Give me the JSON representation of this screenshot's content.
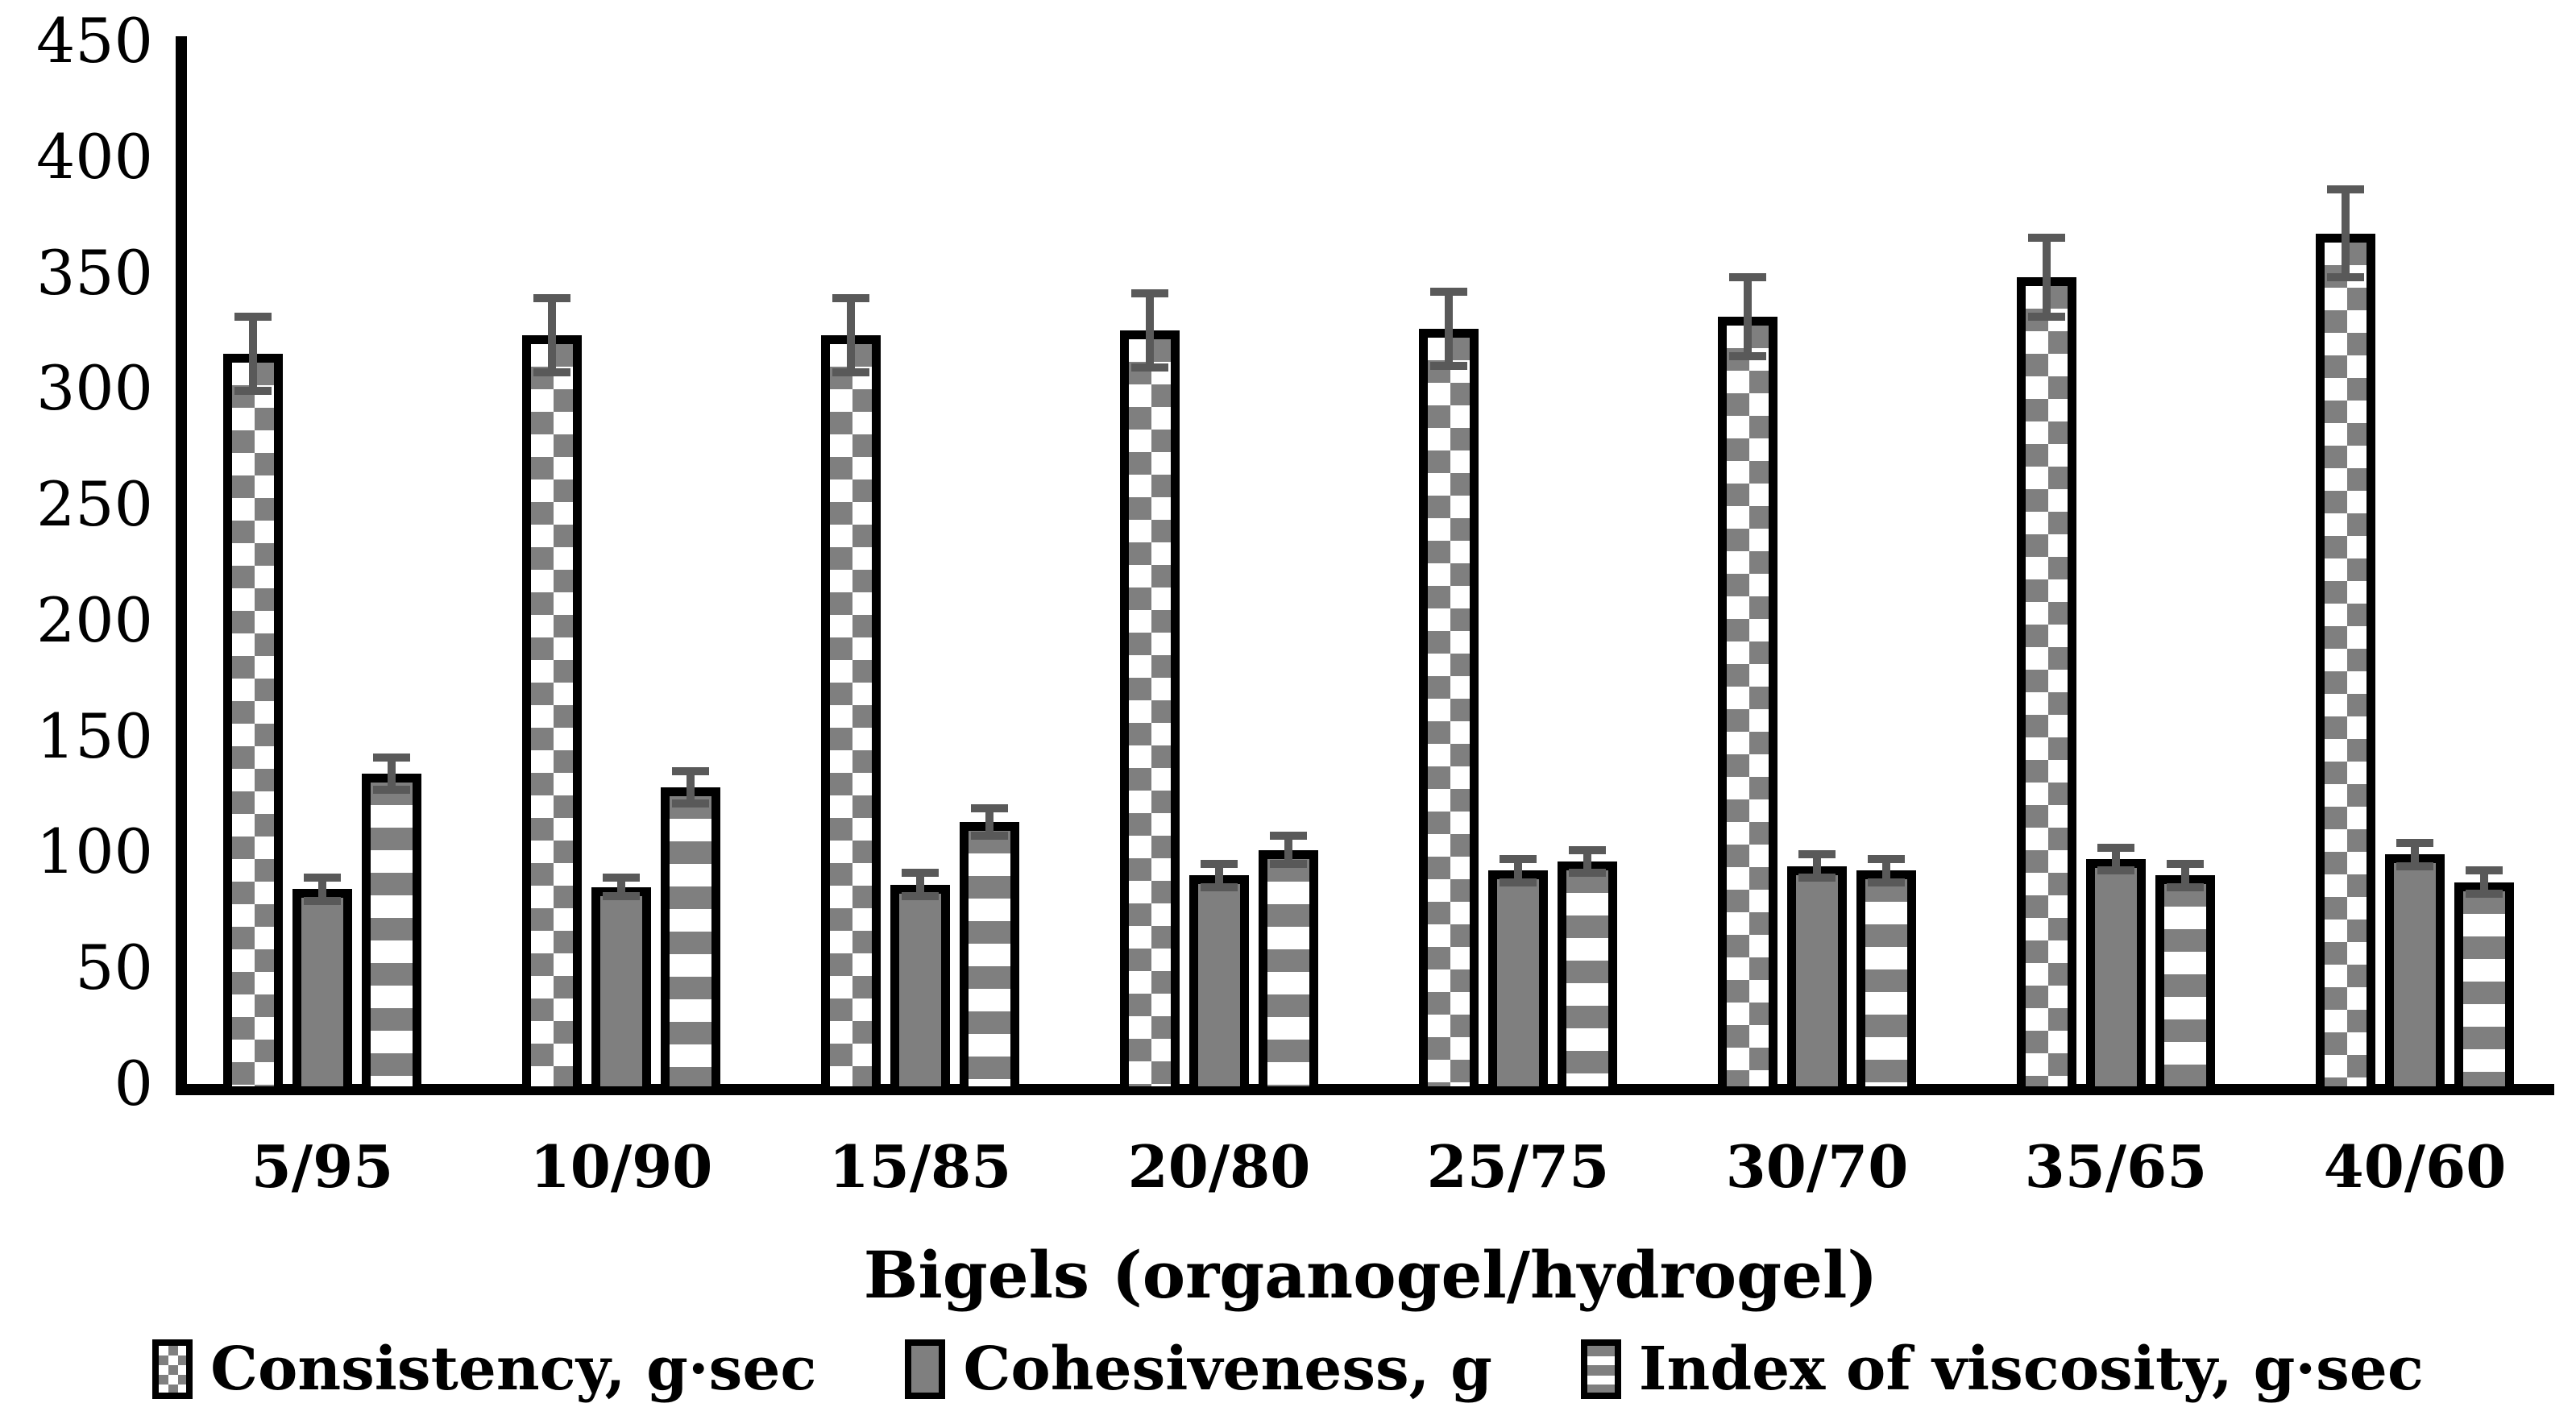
{
  "chart_data": {
    "type": "bar",
    "categories": [
      "5/95",
      "10/90",
      "15/85",
      "20/80",
      "25/75",
      "30/70",
      "35/65",
      "40/60"
    ],
    "series": [
      {
        "name": "Consistency, g·sec",
        "pattern": "checkerboard",
        "values": [
          315,
          323,
          323,
          325,
          326,
          331,
          348,
          367
        ],
        "errors": [
          16,
          16,
          16,
          16,
          16,
          17,
          17,
          19
        ]
      },
      {
        "name": "Cohesiveness, g",
        "pattern": "solid",
        "values": [
          84,
          85,
          86,
          90,
          92,
          94,
          97,
          99
        ],
        "errors": [
          5,
          4,
          5,
          5,
          5,
          5,
          5,
          5
        ]
      },
      {
        "name": "Index of viscosity, g·sec",
        "pattern": "horizontal-stripes",
        "values": [
          134,
          128,
          113,
          101,
          96,
          92,
          90,
          87
        ],
        "errors": [
          7,
          7,
          6,
          6,
          5,
          5,
          5,
          5
        ]
      }
    ],
    "xlabel": "Bigels (organogel/hydrogel)",
    "ylabel": "",
    "ylim": [
      0,
      450
    ],
    "yticks": [
      0,
      50,
      100,
      150,
      200,
      250,
      300,
      350,
      400,
      450
    ],
    "grid": false,
    "legend_position": "bottom",
    "error_bars": true,
    "colors": {
      "bar_fill": "#7f7f7f",
      "error_bar": "#595959",
      "axis": "#000000",
      "text": "#000000",
      "background": "#ffffff"
    }
  }
}
